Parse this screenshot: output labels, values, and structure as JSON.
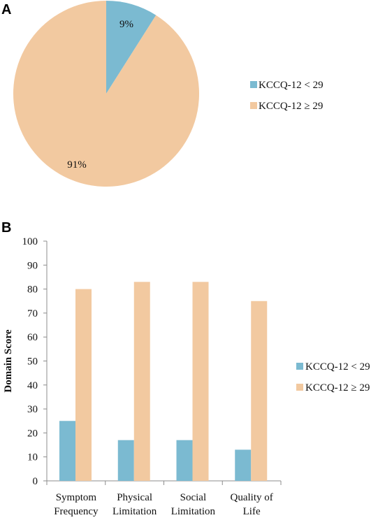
{
  "panels": {
    "a_label": "A",
    "b_label": "B"
  },
  "colors": {
    "low": "#7bbad1",
    "high": "#f2c9a0",
    "axis": "#8c8c8c"
  },
  "chart_data": [
    {
      "type": "pie",
      "title": "",
      "categories": [
        "KCCQ-12 < 29",
        "KCCQ-12 ≥ 29"
      ],
      "values": [
        9,
        91
      ],
      "value_labels": [
        "9%",
        "91%"
      ],
      "legend": {
        "placement": "right",
        "entries": [
          "KCCQ-12 < 29",
          "KCCQ-12 ≥ 29"
        ]
      }
    },
    {
      "type": "bar",
      "title": "",
      "xlabel": "",
      "ylabel": "Domain Score",
      "ylim": [
        0,
        100
      ],
      "yticks": [
        0,
        10,
        20,
        30,
        40,
        50,
        60,
        70,
        80,
        90,
        100
      ],
      "grid": false,
      "categories": [
        [
          "Symptom",
          "Frequency"
        ],
        [
          "Physical",
          "Limitation"
        ],
        [
          "Social",
          "Limitation"
        ],
        [
          "Quality of",
          "Life"
        ]
      ],
      "series": [
        {
          "name": "KCCQ-12 < 29",
          "values": [
            25,
            17,
            17,
            13
          ]
        },
        {
          "name": "KCCQ-12 ≥ 29",
          "values": [
            80,
            83,
            83,
            75
          ]
        }
      ],
      "legend": {
        "placement": "right",
        "entries": [
          "KCCQ-12 < 29",
          "KCCQ-12 ≥ 29"
        ]
      }
    }
  ]
}
